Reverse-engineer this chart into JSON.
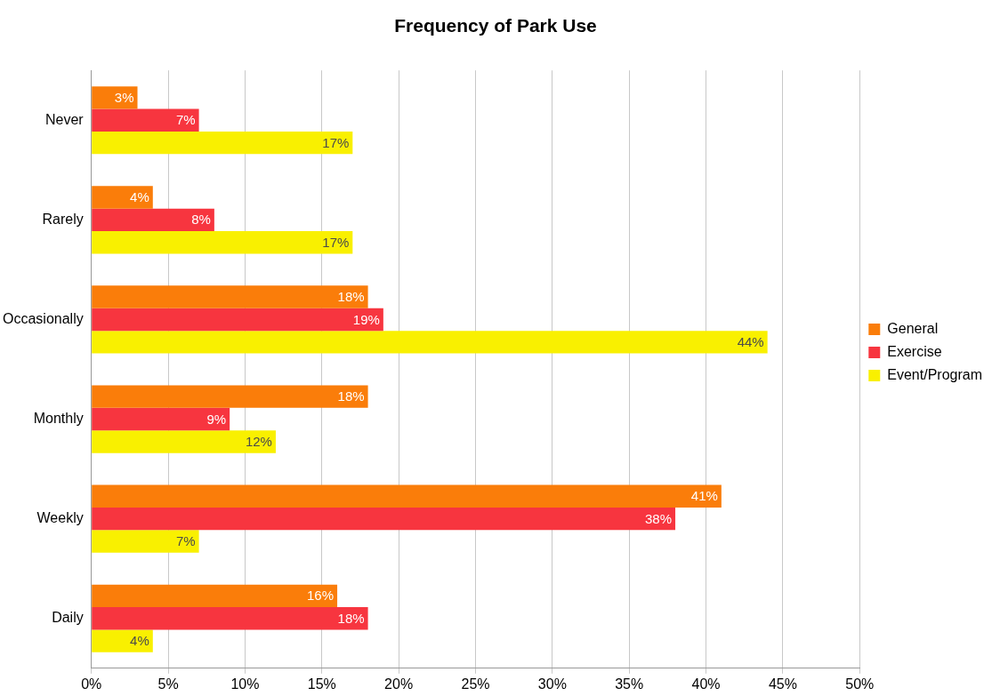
{
  "chart_data": {
    "type": "bar",
    "orientation": "horizontal",
    "title": "Frequency of Park Use",
    "categories": [
      "Never",
      "Rarely",
      "Occasionally",
      "Monthly",
      "Weekly",
      "Daily"
    ],
    "series": [
      {
        "name": "General",
        "color": "#fa7d0a",
        "values": [
          3,
          4,
          18,
          18,
          41,
          16
        ],
        "value_labels": [
          "3%",
          "4%",
          "18%",
          "18%",
          "41%",
          "16%"
        ]
      },
      {
        "name": "Exercise",
        "color": "#f7353f",
        "values": [
          7,
          8,
          19,
          9,
          38,
          18
        ],
        "value_labels": [
          "7%",
          "8%",
          "19%",
          "9%",
          "38%",
          "18%"
        ]
      },
      {
        "name": "Event/Program",
        "color": "#f9f000",
        "values": [
          17,
          17,
          44,
          12,
          7,
          4
        ],
        "value_labels": [
          "17%",
          "17%",
          "44%",
          "12%",
          "7%",
          "4%"
        ]
      }
    ],
    "xlim": [
      0,
      50
    ],
    "xticks": [
      {
        "value": 0,
        "label": "0%"
      },
      {
        "value": 5,
        "label": "5%"
      },
      {
        "value": 10,
        "label": "10%"
      },
      {
        "value": 15,
        "label": "15%"
      },
      {
        "value": 20,
        "label": "20%"
      },
      {
        "value": 25,
        "label": "25%"
      },
      {
        "value": 30,
        "label": "30%"
      },
      {
        "value": 35,
        "label": "35%"
      },
      {
        "value": 40,
        "label": "40%"
      },
      {
        "value": 45,
        "label": "45%"
      },
      {
        "value": 50,
        "label": "50%"
      }
    ],
    "grid": "x",
    "legend": "right"
  }
}
